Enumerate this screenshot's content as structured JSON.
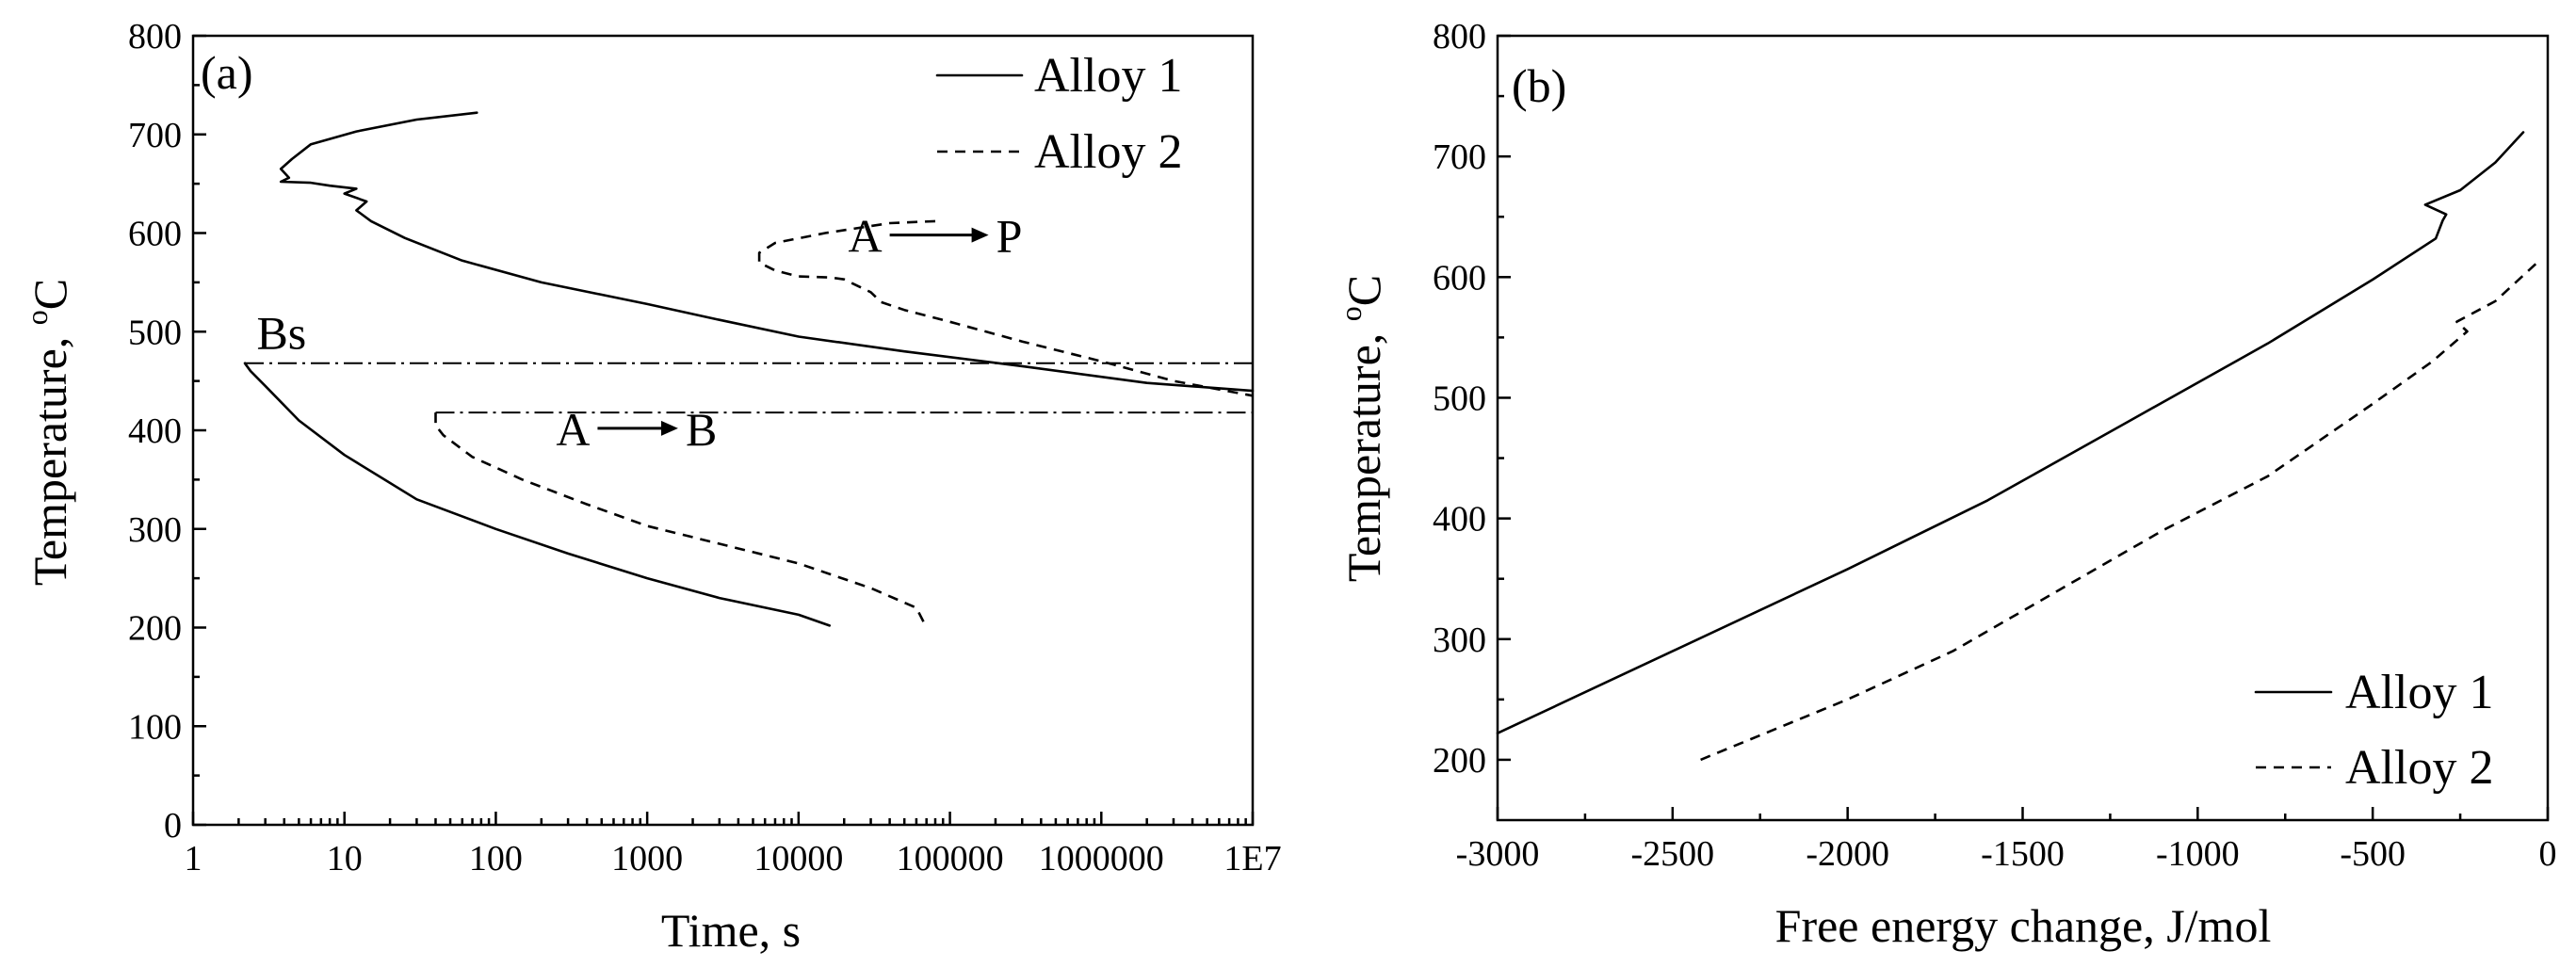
{
  "chart_data": [
    {
      "id": "a",
      "type": "line",
      "panel_label": "(a)",
      "title": "",
      "xlabel": "Time, s",
      "ylabel": "Temperature, ",
      "ylabel_unit_sup": "o",
      "ylabel_unit": "C",
      "xscale": "log",
      "xlim": [
        1,
        10000000
      ],
      "ylim": [
        0,
        800
      ],
      "xticks": [
        {
          "value": 1,
          "label": "1"
        },
        {
          "value": 10,
          "label": "10"
        },
        {
          "value": 100,
          "label": "100"
        },
        {
          "value": 1000,
          "label": "1000"
        },
        {
          "value": 10000,
          "label": "10000"
        },
        {
          "value": 100000,
          "label": "100000"
        },
        {
          "value": 1000000,
          "label": "1000000"
        },
        {
          "value": 10000000,
          "label": "1E7"
        }
      ],
      "yticks": [
        0,
        100,
        200,
        300,
        400,
        500,
        600,
        700,
        800
      ],
      "legend_position": "top-right",
      "series": [
        {
          "name": "Alloy 1",
          "style": "solid",
          "legend": true,
          "points": [
            [
              75,
              722
            ],
            [
              30,
              715
            ],
            [
              12,
              703
            ],
            [
              6,
              690
            ],
            [
              4.5,
              675
            ],
            [
              3.8,
              665
            ],
            [
              4.3,
              656
            ],
            [
              3.8,
              652
            ],
            [
              6,
              651
            ],
            [
              8,
              648
            ],
            [
              12,
              645
            ],
            [
              10,
              640
            ],
            [
              14,
              632
            ],
            [
              12,
              623
            ],
            [
              15,
              612
            ],
            [
              25,
              595
            ],
            [
              60,
              572
            ],
            [
              200,
              550
            ],
            [
              1000,
              528
            ],
            [
              3000,
              512
            ],
            [
              10000,
              495
            ],
            [
              50000,
              480
            ],
            [
              300000,
              465
            ],
            [
              2000000,
              448
            ],
            [
              10000000,
              440
            ]
          ]
        },
        {
          "name": "Alloy 1 lower branch",
          "style": "solid",
          "legend": false,
          "points": [
            [
              2.2,
              468
            ],
            [
              2.4,
              460
            ],
            [
              3,
              445
            ],
            [
              5,
              410
            ],
            [
              10,
              375
            ],
            [
              30,
              330
            ],
            [
              100,
              300
            ],
            [
              300,
              275
            ],
            [
              1000,
              250
            ],
            [
              3000,
              230
            ],
            [
              10000,
              213
            ],
            [
              16000,
              202
            ]
          ]
        },
        {
          "name": "Alloy 2",
          "style": "dashed",
          "legend": true,
          "points": [
            [
              80000,
              612
            ],
            [
              40000,
              610
            ],
            [
              15000,
              600
            ],
            [
              7000,
              590
            ],
            [
              5500,
              580
            ],
            [
              5500,
              570
            ],
            [
              7000,
              562
            ],
            [
              10000,
              556
            ],
            [
              16000,
              555
            ],
            [
              20000,
              553
            ],
            [
              30000,
              540
            ],
            [
              35000,
              530
            ],
            [
              50000,
              522
            ],
            [
              100000,
              510
            ],
            [
              300000,
              490
            ],
            [
              1000000,
              470
            ],
            [
              3000000,
              450
            ],
            [
              10000000,
              435
            ]
          ]
        },
        {
          "name": "Alloy 2 lower branch",
          "style": "dashed",
          "legend": false,
          "points": [
            [
              40,
              418
            ],
            [
              40,
              405
            ],
            [
              45,
              395
            ],
            [
              55,
              385
            ],
            [
              70,
              373
            ],
            [
              150,
              350
            ],
            [
              400,
              325
            ],
            [
              1000,
              303
            ],
            [
              3000,
              285
            ],
            [
              10000,
              265
            ],
            [
              30000,
              240
            ],
            [
              60000,
              220
            ],
            [
              70000,
              200
            ]
          ]
        },
        {
          "name": "Bs line Alloy 1",
          "style": "dashdot",
          "legend": false,
          "points": [
            [
              2.2,
              468
            ],
            [
              10000000,
              468
            ]
          ]
        },
        {
          "name": "Bs line Alloy 2",
          "style": "dashdot",
          "legend": false,
          "points": [
            [
              40,
              418
            ],
            [
              10000000,
              418
            ]
          ]
        }
      ],
      "annotations": [
        {
          "text": "Bs",
          "x": 3.5,
          "y": 500
        },
        {
          "text_from": "A",
          "text_to": "B",
          "x1": 470,
          "x2": 1600,
          "y": 402
        },
        {
          "text_from": "A",
          "text_to": "P",
          "x1": 40000,
          "x2": 180000,
          "y": 598
        }
      ]
    },
    {
      "id": "b",
      "type": "line",
      "panel_label": "(b)",
      "title": "",
      "xlabel": "Free energy change, J/mol",
      "ylabel": "Temperature, ",
      "ylabel_unit_sup": "o",
      "ylabel_unit": "C",
      "xscale": "linear",
      "xlim": [
        -3000,
        0
      ],
      "ylim": [
        150,
        800
      ],
      "xticks": [
        {
          "value": -3000,
          "label": "-3000"
        },
        {
          "value": -2500,
          "label": "-2500"
        },
        {
          "value": -2000,
          "label": "-2000"
        },
        {
          "value": -1500,
          "label": "-1500"
        },
        {
          "value": -1000,
          "label": "-1000"
        },
        {
          "value": -500,
          "label": "-500"
        },
        {
          "value": 0,
          "label": "0"
        }
      ],
      "yticks": [
        200,
        300,
        400,
        500,
        600,
        700,
        800
      ],
      "legend_position": "bottom-right",
      "series": [
        {
          "name": "Alloy 1",
          "style": "solid",
          "legend": true,
          "points": [
            [
              -3000,
              222
            ],
            [
              -2500,
              290
            ],
            [
              -2000,
              358
            ],
            [
              -1600,
              415
            ],
            [
              -1200,
              480
            ],
            [
              -800,
              545
            ],
            [
              -500,
              598
            ],
            [
              -320,
              632
            ],
            [
              -300,
              647
            ],
            [
              -290,
              652
            ],
            [
              -350,
              660
            ],
            [
              -250,
              672
            ],
            [
              -150,
              695
            ],
            [
              -70,
              720
            ]
          ]
        },
        {
          "name": "Alloy 2",
          "style": "dashed",
          "legend": true,
          "points": [
            [
              -2420,
              200
            ],
            [
              -2000,
              250
            ],
            [
              -1700,
              290
            ],
            [
              -1400,
              340
            ],
            [
              -1100,
              390
            ],
            [
              -800,
              435
            ],
            [
              -500,
              495
            ],
            [
              -330,
              530
            ],
            [
              -230,
              555
            ],
            [
              -260,
              563
            ],
            [
              -150,
              580
            ],
            [
              -30,
              612
            ]
          ]
        }
      ]
    }
  ]
}
